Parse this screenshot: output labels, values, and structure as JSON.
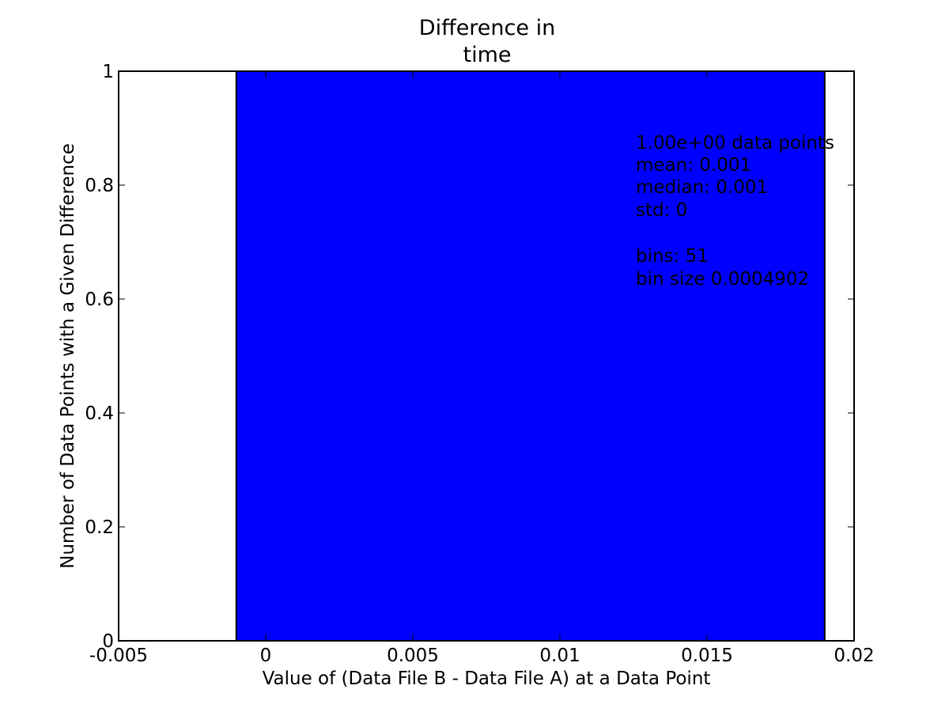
{
  "chart_data": {
    "type": "bar",
    "title_lines": [
      "Difference in",
      "time"
    ],
    "xlabel": "Value of (Data File B - Data File A) at a Data Point",
    "ylabel": "Number of Data Points with a Given Difference",
    "xlim": [
      -0.005,
      0.02
    ],
    "ylim": [
      0,
      1
    ],
    "x_ticks": [
      {
        "value": -0.005,
        "label": "-0.005"
      },
      {
        "value": 0,
        "label": "0"
      },
      {
        "value": 0.005,
        "label": "0.005"
      },
      {
        "value": 0.01,
        "label": "0.01"
      },
      {
        "value": 0.015,
        "label": "0.015"
      },
      {
        "value": 0.02,
        "label": "0.02"
      }
    ],
    "y_ticks": [
      {
        "value": 0,
        "label": "0"
      },
      {
        "value": 0.2,
        "label": "0.2"
      },
      {
        "value": 0.4,
        "label": "0.4"
      },
      {
        "value": 0.6,
        "label": "0.6"
      },
      {
        "value": 0.8,
        "label": "0.8"
      },
      {
        "value": 1,
        "label": "1"
      }
    ],
    "bars": [
      {
        "x_start": -0.001,
        "x_end": 0.019,
        "value": 1
      }
    ],
    "bar_color": "#0000ff",
    "annotation_lines": [
      "1.00e+00 data points",
      "mean: 0.001",
      "median: 0.001",
      "std: 0",
      "",
      "bins: 51",
      "bin size 0.0004902"
    ],
    "grid": false
  }
}
